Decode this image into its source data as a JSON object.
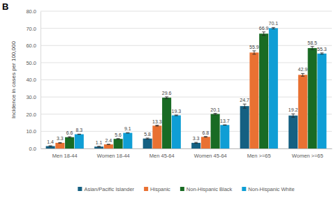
{
  "chart_data": {
    "type": "bar",
    "title": "B",
    "y_label": "Incidence in cases per 100,000",
    "categories": [
      "Men 18-44",
      "Women 18-44",
      "Men 45-64",
      "Women 45-64",
      "Men >=65",
      "Women >=65"
    ],
    "series": [
      {
        "name": "Asian/Pacific Islander",
        "color": "#156082",
        "values": [
          1.4,
          1.1,
          5.8,
          3.3,
          24.7,
          19.2
        ],
        "errors": [
          0.2,
          0.2,
          0.3,
          0.3,
          1.2,
          1.0
        ]
      },
      {
        "name": "Hispanic",
        "color": "#e97132",
        "values": [
          3.3,
          2.4,
          13.3,
          6.8,
          55.9,
          42.9
        ],
        "errors": [
          0.2,
          0.1,
          0.3,
          0.2,
          1.0,
          0.8
        ]
      },
      {
        "name": "Non-Hispanic Black",
        "color": "#196b24",
        "values": [
          6.6,
          5.6,
          29.6,
          20.1,
          66.9,
          58.5
        ],
        "errors": [
          0.3,
          0.2,
          0.5,
          0.4,
          1.0,
          0.9
        ]
      },
      {
        "name": "Non-Hispanic White",
        "color": "#0f9ed5",
        "values": [
          8.3,
          9.1,
          19.3,
          13.7,
          70.1,
          55.3
        ],
        "errors": [
          0.1,
          0.1,
          0.2,
          0.1,
          0.4,
          0.4
        ]
      }
    ],
    "ylim": [
      0,
      80
    ],
    "yticks": [
      {
        "value": 0,
        "label": "0.0"
      },
      {
        "value": 10,
        "label": "10.0"
      },
      {
        "value": 20,
        "label": "20.0"
      },
      {
        "value": 30,
        "label": "30.0"
      },
      {
        "value": 40,
        "label": "40.0"
      },
      {
        "value": 50,
        "label": "50.0"
      },
      {
        "value": 60,
        "label": "60.0"
      },
      {
        "value": 70,
        "label": "70.0"
      },
      {
        "value": 80,
        "label": "80.0"
      }
    ],
    "grid": true,
    "legend": "bottom",
    "data_labels": true
  }
}
